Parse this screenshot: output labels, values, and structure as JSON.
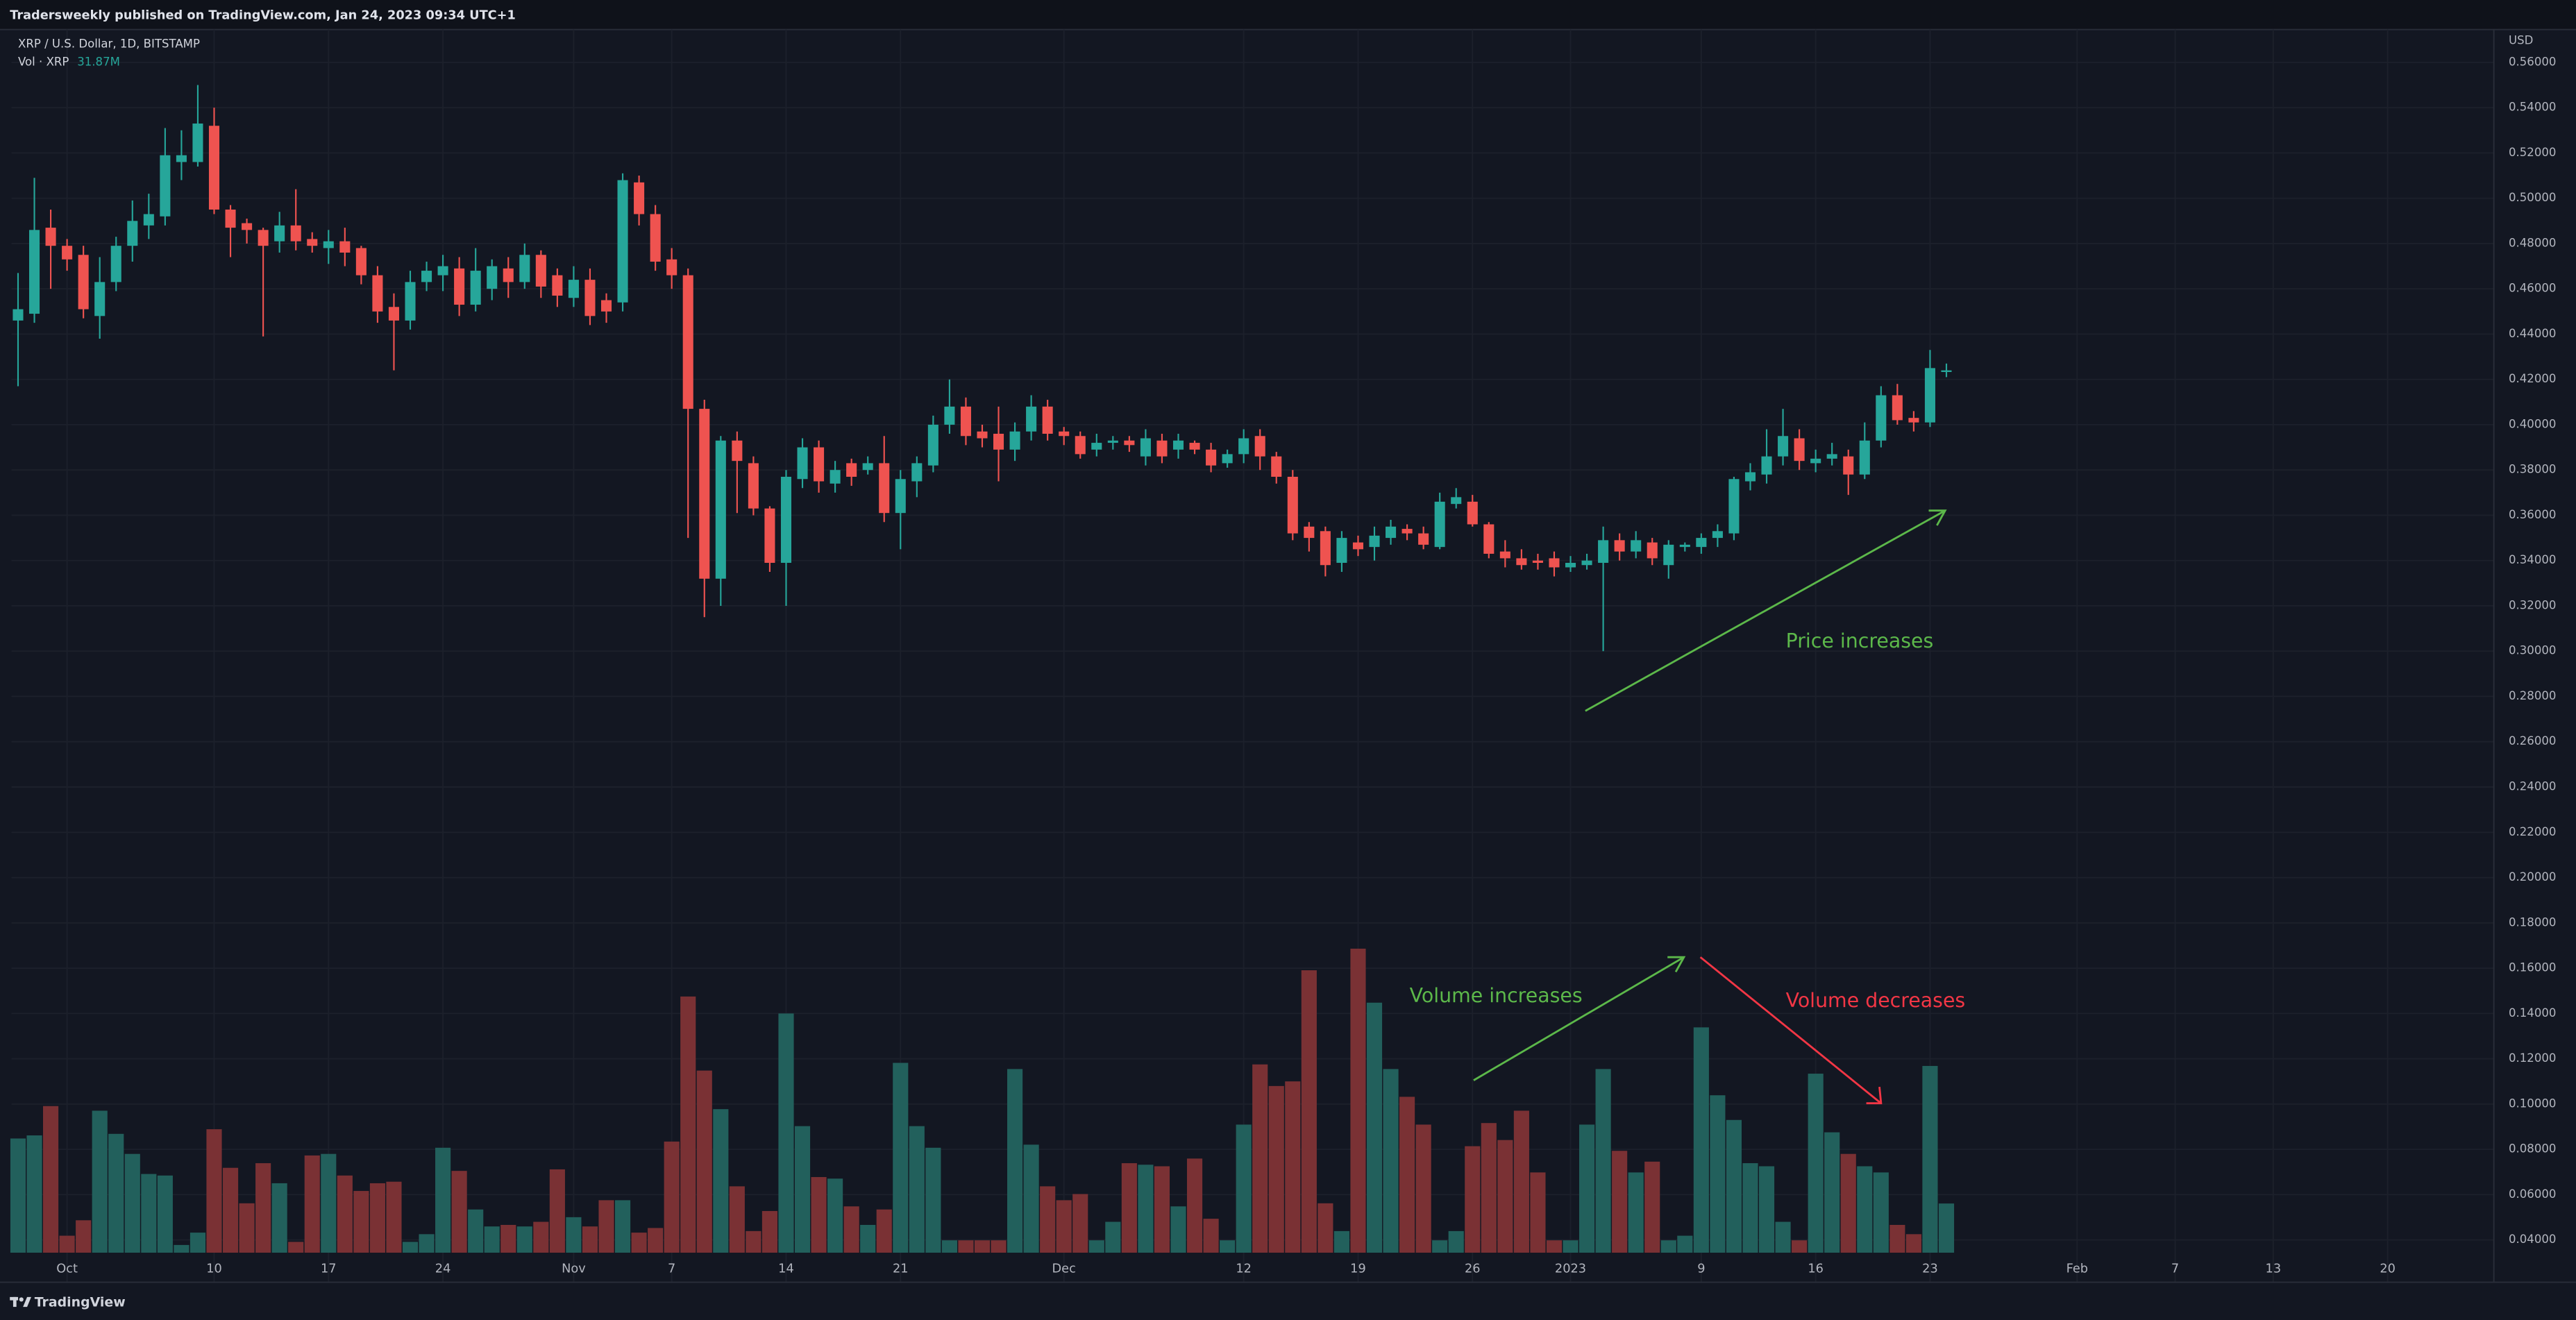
{
  "header": "Tradersweekly published on TradingView.com, Jan 24, 2023 09:34 UTC+1",
  "footer": "TradingView",
  "chart_data": {
    "type": "candlestick",
    "title": "XRP / U.S. Dollar, 1D, BITSTAMP",
    "currency": "USD",
    "volume_name": "Vol · XRP",
    "volume_value_label": "31.87M",
    "up_color": "#26a69a",
    "down_color": "#ef5350",
    "volume_up_color": "#22605c",
    "volume_down_color": "#7a3134",
    "grid": true,
    "open": [
      0.446,
      0.449,
      0.487,
      0.479,
      0.475,
      0.448,
      0.463,
      0.479,
      0.488,
      0.492,
      0.516,
      0.516,
      0.532,
      0.495,
      0.489,
      0.486,
      0.481,
      0.488,
      0.482,
      0.478,
      0.481,
      0.478,
      0.466,
      0.452,
      0.446,
      0.463,
      0.466,
      0.469,
      0.453,
      0.46,
      0.469,
      0.463,
      0.475,
      0.466,
      0.456,
      0.464,
      0.455,
      0.454,
      0.507,
      0.493,
      0.473,
      0.466,
      0.407,
      0.332,
      0.393,
      0.383,
      0.363,
      0.339,
      0.376,
      0.39,
      0.374,
      0.383,
      0.38,
      0.383,
      0.361,
      0.375,
      0.382,
      0.4,
      0.408,
      0.397,
      0.396,
      0.389,
      0.397,
      0.408,
      0.397,
      0.395,
      0.389,
      0.392,
      0.393,
      0.386,
      0.393,
      0.389,
      0.392,
      0.389,
      0.383,
      0.387,
      0.395,
      0.386,
      0.377,
      0.355,
      0.353,
      0.339,
      0.348,
      0.346,
      0.35,
      0.354,
      0.352,
      0.346,
      0.365,
      0.366,
      0.356,
      0.344,
      0.341,
      0.34,
      0.341,
      0.337,
      0.338,
      0.339,
      0.349,
      0.344,
      0.348,
      0.338,
      0.346,
      0.346,
      0.35,
      0.352,
      0.375,
      0.378,
      0.386,
      0.394,
      0.383,
      0.385,
      0.386,
      0.378,
      0.393,
      0.413,
      0.403,
      0.401,
      0.424
    ],
    "high": [
      0.467,
      0.509,
      0.495,
      0.482,
      0.479,
      0.474,
      0.483,
      0.499,
      0.502,
      0.531,
      0.53,
      0.55,
      0.54,
      0.497,
      0.491,
      0.487,
      0.494,
      0.504,
      0.485,
      0.486,
      0.487,
      0.479,
      0.47,
      0.458,
      0.468,
      0.472,
      0.475,
      0.474,
      0.478,
      0.473,
      0.474,
      0.48,
      0.477,
      0.469,
      0.47,
      0.469,
      0.458,
      0.511,
      0.51,
      0.497,
      0.478,
      0.469,
      0.411,
      0.395,
      0.397,
      0.386,
      0.364,
      0.38,
      0.394,
      0.393,
      0.384,
      0.385,
      0.386,
      0.395,
      0.38,
      0.386,
      0.404,
      0.42,
      0.412,
      0.4,
      0.408,
      0.401,
      0.413,
      0.411,
      0.399,
      0.397,
      0.396,
      0.395,
      0.395,
      0.398,
      0.396,
      0.396,
      0.393,
      0.392,
      0.389,
      0.398,
      0.398,
      0.388,
      0.38,
      0.357,
      0.355,
      0.353,
      0.351,
      0.355,
      0.358,
      0.356,
      0.355,
      0.37,
      0.372,
      0.369,
      0.357,
      0.349,
      0.345,
      0.343,
      0.344,
      0.342,
      0.343,
      0.355,
      0.352,
      0.353,
      0.35,
      0.349,
      0.348,
      0.352,
      0.356,
      0.377,
      0.383,
      0.398,
      0.407,
      0.398,
      0.389,
      0.392,
      0.389,
      0.401,
      0.417,
      0.418,
      0.406,
      0.433,
      0.427
    ],
    "low": [
      0.417,
      0.445,
      0.46,
      0.468,
      0.447,
      0.438,
      0.459,
      0.472,
      0.482,
      0.488,
      0.508,
      0.514,
      0.493,
      0.474,
      0.48,
      0.439,
      0.476,
      0.477,
      0.476,
      0.471,
      0.47,
      0.462,
      0.445,
      0.424,
      0.442,
      0.459,
      0.459,
      0.448,
      0.45,
      0.455,
      0.456,
      0.46,
      0.456,
      0.452,
      0.452,
      0.444,
      0.445,
      0.45,
      0.488,
      0.468,
      0.46,
      0.35,
      0.315,
      0.32,
      0.361,
      0.36,
      0.335,
      0.32,
      0.372,
      0.37,
      0.37,
      0.373,
      0.378,
      0.357,
      0.345,
      0.368,
      0.379,
      0.396,
      0.391,
      0.39,
      0.375,
      0.384,
      0.393,
      0.393,
      0.391,
      0.385,
      0.386,
      0.389,
      0.388,
      0.382,
      0.383,
      0.385,
      0.387,
      0.379,
      0.381,
      0.383,
      0.38,
      0.374,
      0.349,
      0.344,
      0.333,
      0.335,
      0.342,
      0.34,
      0.347,
      0.349,
      0.345,
      0.345,
      0.363,
      0.355,
      0.341,
      0.337,
      0.336,
      0.336,
      0.333,
      0.335,
      0.336,
      0.3,
      0.34,
      0.341,
      0.338,
      0.332,
      0.344,
      0.343,
      0.346,
      0.349,
      0.371,
      0.374,
      0.382,
      0.38,
      0.379,
      0.382,
      0.369,
      0.376,
      0.39,
      0.4,
      0.397,
      0.399,
      0.421
    ],
    "close": [
      0.451,
      0.486,
      0.479,
      0.473,
      0.451,
      0.463,
      0.479,
      0.49,
      0.493,
      0.519,
      0.519,
      0.533,
      0.495,
      0.487,
      0.486,
      0.479,
      0.488,
      0.481,
      0.479,
      0.481,
      0.476,
      0.466,
      0.45,
      0.446,
      0.463,
      0.468,
      0.47,
      0.453,
      0.468,
      0.47,
      0.463,
      0.475,
      0.461,
      0.457,
      0.464,
      0.448,
      0.45,
      0.508,
      0.493,
      0.472,
      0.466,
      0.407,
      0.332,
      0.393,
      0.384,
      0.363,
      0.339,
      0.377,
      0.39,
      0.375,
      0.38,
      0.377,
      0.383,
      0.361,
      0.376,
      0.383,
      0.4,
      0.408,
      0.395,
      0.394,
      0.389,
      0.397,
      0.408,
      0.396,
      0.395,
      0.387,
      0.392,
      0.393,
      0.391,
      0.394,
      0.386,
      0.393,
      0.389,
      0.382,
      0.387,
      0.394,
      0.386,
      0.377,
      0.352,
      0.35,
      0.338,
      0.35,
      0.345,
      0.351,
      0.355,
      0.352,
      0.347,
      0.366,
      0.368,
      0.356,
      0.343,
      0.341,
      0.338,
      0.339,
      0.337,
      0.339,
      0.34,
      0.349,
      0.344,
      0.349,
      0.341,
      0.347,
      0.347,
      0.35,
      0.353,
      0.376,
      0.379,
      0.386,
      0.395,
      0.384,
      0.385,
      0.387,
      0.378,
      0.393,
      0.413,
      0.402,
      0.401,
      0.425,
      0.424
    ],
    "volume": [
      74,
      76,
      95,
      11,
      21,
      92,
      77,
      64,
      51,
      50,
      5,
      13,
      80,
      55,
      32,
      58,
      45,
      7,
      63,
      64,
      50,
      40,
      45,
      46,
      7,
      12,
      68,
      53,
      28,
      17,
      18,
      17,
      20,
      54,
      23,
      17,
      34,
      34,
      13,
      16,
      72,
      166,
      118,
      93,
      43,
      14,
      27,
      155,
      82,
      49,
      48,
      30,
      18,
      28,
      123,
      82,
      68,
      8,
      8,
      8,
      8,
      119,
      70,
      43,
      34,
      38,
      8,
      20,
      58,
      57,
      56,
      30,
      61,
      22,
      8,
      83,
      122,
      108,
      111,
      183,
      32,
      14,
      197,
      162,
      119,
      101,
      83,
      8,
      14,
      69,
      84,
      73,
      92,
      52,
      8,
      8,
      83,
      119,
      66,
      52,
      59,
      8,
      11,
      146,
      102,
      86,
      58,
      56,
      20,
      8,
      116,
      78,
      64,
      56,
      52,
      18,
      12,
      121,
      31.87
    ],
    "xlim": [
      -0.4,
      151.5
    ],
    "xticks": [
      {
        "value": 3,
        "label": "Oct"
      },
      {
        "value": 12,
        "label": "10"
      },
      {
        "value": 19,
        "label": "17"
      },
      {
        "value": 26,
        "label": "24"
      },
      {
        "value": 34,
        "label": "Nov"
      },
      {
        "value": 40,
        "label": "7"
      },
      {
        "value": 47,
        "label": "14"
      },
      {
        "value": 54,
        "label": "21"
      },
      {
        "value": 64,
        "label": "Dec"
      },
      {
        "value": 75,
        "label": "12"
      },
      {
        "value": 82,
        "label": "19"
      },
      {
        "value": 89,
        "label": "26"
      },
      {
        "value": 95,
        "label": "2023"
      },
      {
        "value": 103,
        "label": "9"
      },
      {
        "value": 110,
        "label": "16"
      },
      {
        "value": 117,
        "label": "23"
      },
      {
        "value": 126,
        "label": "Feb"
      },
      {
        "value": 132,
        "label": "7"
      },
      {
        "value": 138,
        "label": "13"
      },
      {
        "value": 145,
        "label": "20"
      }
    ],
    "ylim": [
      0.0213,
      0.5745
    ],
    "yticks": [
      {
        "value": 0.04,
        "label": "0.04000"
      },
      {
        "value": 0.06,
        "label": "0.06000"
      },
      {
        "value": 0.08,
        "label": "0.08000"
      },
      {
        "value": 0.1,
        "label": "0.10000"
      },
      {
        "value": 0.12,
        "label": "0.12000"
      },
      {
        "value": 0.14,
        "label": "0.14000"
      },
      {
        "value": 0.16,
        "label": "0.16000"
      },
      {
        "value": 0.18,
        "label": "0.18000"
      },
      {
        "value": 0.2,
        "label": "0.20000"
      },
      {
        "value": 0.22,
        "label": "0.22000"
      },
      {
        "value": 0.24,
        "label": "0.24000"
      },
      {
        "value": 0.26,
        "label": "0.26000"
      },
      {
        "value": 0.28,
        "label": "0.28000"
      },
      {
        "value": 0.3,
        "label": "0.30000"
      },
      {
        "value": 0.32,
        "label": "0.32000"
      },
      {
        "value": 0.34,
        "label": "0.34000"
      },
      {
        "value": 0.36,
        "label": "0.36000"
      },
      {
        "value": 0.38,
        "label": "0.38000"
      },
      {
        "value": 0.4,
        "label": "0.40000"
      },
      {
        "value": 0.42,
        "label": "0.42000"
      },
      {
        "value": 0.44,
        "label": "0.44000"
      },
      {
        "value": 0.46,
        "label": "0.46000"
      },
      {
        "value": 0.48,
        "label": "0.48000"
      },
      {
        "value": 0.5,
        "label": "0.50000"
      },
      {
        "value": 0.52,
        "label": "0.52000"
      },
      {
        "value": 0.54,
        "label": "0.54000"
      },
      {
        "value": 0.56,
        "label": "0.56000"
      }
    ],
    "vlim": [
      0,
      200
    ],
    "annotations": [
      {
        "text": "Price increases",
        "color": "#5cb84a"
      },
      {
        "text": "Volume increases",
        "color": "#5cb84a"
      },
      {
        "text": "Volume decreases",
        "color": "#f23645"
      }
    ]
  }
}
